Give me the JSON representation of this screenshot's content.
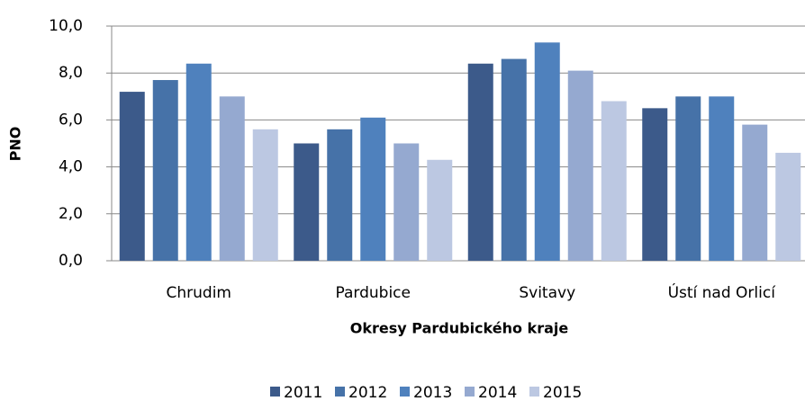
{
  "chart_data": {
    "type": "bar",
    "x_label": "Okresy Pardubického kraje",
    "y_label": "PNO",
    "categories": [
      "Chrudim",
      "Pardubice",
      "Svitavy",
      "Ústí nad Orlicí"
    ],
    "series": [
      {
        "name": "2011",
        "color": "#3c5a8a",
        "values": [
          7.2,
          5.0,
          8.4,
          6.5
        ]
      },
      {
        "name": "2012",
        "color": "#4672a8",
        "values": [
          7.7,
          5.6,
          8.6,
          7.0
        ]
      },
      {
        "name": "2013",
        "color": "#4f81bd",
        "values": [
          8.4,
          6.1,
          9.3,
          7.0
        ]
      },
      {
        "name": "2014",
        "color": "#95a9d0",
        "values": [
          7.0,
          5.0,
          8.1,
          5.8
        ]
      },
      {
        "name": "2015",
        "color": "#bcc8e2",
        "values": [
          5.6,
          4.3,
          6.8,
          4.6
        ]
      }
    ],
    "ylim": [
      0,
      10
    ],
    "yticks": [
      {
        "value": 0,
        "label": "0,0"
      },
      {
        "value": 2,
        "label": "2,0"
      },
      {
        "value": 4,
        "label": "4,0"
      },
      {
        "value": 6,
        "label": "6,0"
      },
      {
        "value": 8,
        "label": "8,0"
      },
      {
        "value": 10,
        "label": "10,0"
      }
    ],
    "grid": true,
    "legend": "bottom"
  }
}
